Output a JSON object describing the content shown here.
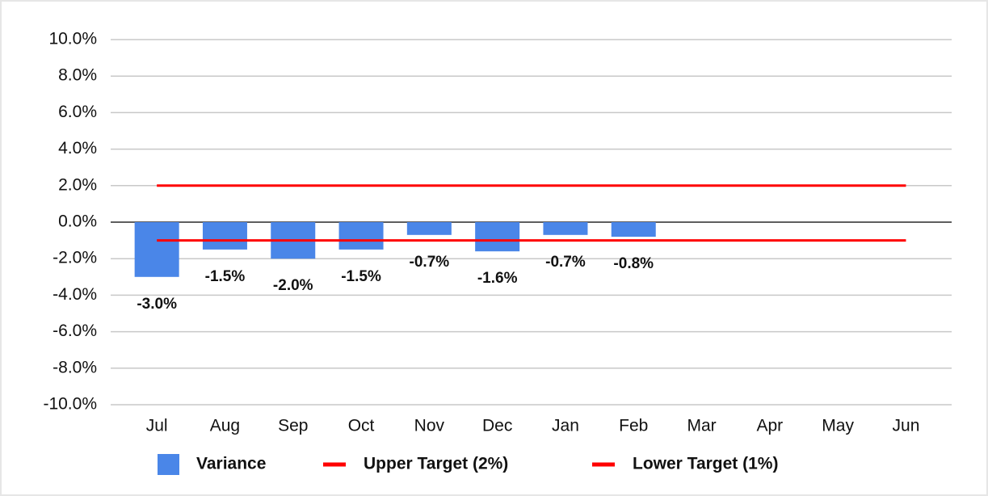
{
  "chart_data": {
    "type": "bar",
    "categories": [
      "Jul",
      "Aug",
      "Sep",
      "Oct",
      "Nov",
      "Dec",
      "Jan",
      "Feb",
      "Mar",
      "Apr",
      "May",
      "Jun"
    ],
    "series": [
      {
        "name": "Variance",
        "type": "bar",
        "color": "#4a86e8",
        "values": [
          -3.0,
          -1.5,
          -2.0,
          -1.5,
          -0.7,
          -1.6,
          -0.7,
          -0.8,
          null,
          null,
          null,
          null
        ],
        "value_labels": [
          "-3.0%",
          "-1.5%",
          "-2.0%",
          "-1.5%",
          "-0.7%",
          "-1.6%",
          "-0.7%",
          "-0.8%",
          null,
          null,
          null,
          null
        ]
      },
      {
        "name": "Upper Target (2%)",
        "type": "line",
        "color": "#ff0000",
        "values": [
          2,
          2,
          2,
          2,
          2,
          2,
          2,
          2,
          2,
          2,
          2,
          2
        ]
      },
      {
        "name": "Lower Target (1%)",
        "type": "line",
        "color": "#ff0000",
        "values": [
          -1,
          -1,
          -1,
          -1,
          -1,
          -1,
          -1,
          -1,
          -1,
          -1,
          -1,
          -1
        ]
      }
    ],
    "ylim": [
      -10,
      10
    ],
    "yticks": [
      {
        "value": -10,
        "label": "-10.0%"
      },
      {
        "value": -8,
        "label": "-8.0%"
      },
      {
        "value": -6,
        "label": "-6.0%"
      },
      {
        "value": -4,
        "label": "-4.0%"
      },
      {
        "value": -2,
        "label": "-2.0%"
      },
      {
        "value": 0,
        "label": "0.0%"
      },
      {
        "value": 2,
        "label": "2.0%"
      },
      {
        "value": 4,
        "label": "4.0%"
      },
      {
        "value": 6,
        "label": "6.0%"
      },
      {
        "value": 8,
        "label": "8.0%"
      },
      {
        "value": 10,
        "label": "10.0%"
      }
    ],
    "grid": true,
    "legend": "bottom"
  }
}
